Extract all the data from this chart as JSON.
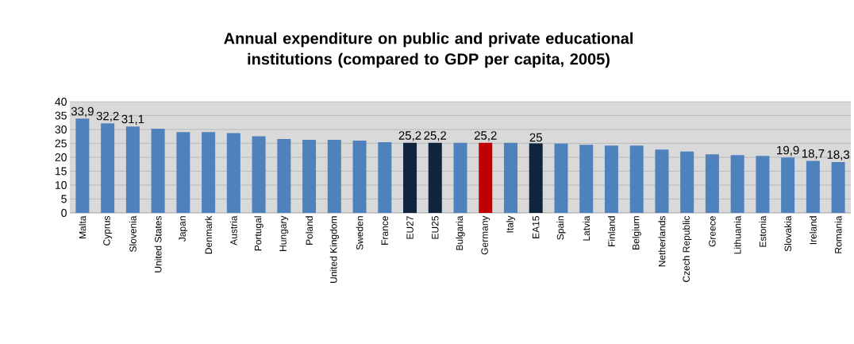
{
  "chart_data": {
    "type": "bar",
    "title": "Annual expenditure on public and private educational institutions   (compared to GDP per capita, 2005)",
    "categories": [
      "Malta",
      "Cyprus",
      "Slovenia",
      "United States",
      "Japan",
      "Denmark",
      "Austria",
      "Portugal",
      "Hungary",
      "Poland",
      "United Kingdom",
      "Sweden",
      "France",
      "EU27",
      "EU25",
      "Bulgaria",
      "Germany",
      "Italy",
      "EA15",
      "Spain",
      "Latvia",
      "Finland",
      "Belgium",
      "Netherlands",
      "Czech Republic",
      "Greece",
      "Lithuania",
      "Estonia",
      "Slovakia",
      "Ireland",
      "Romania"
    ],
    "values": [
      33.9,
      32.2,
      31.1,
      30.3,
      29.1,
      29.1,
      28.7,
      27.6,
      26.6,
      26.3,
      26.3,
      26.0,
      25.4,
      25.2,
      25.2,
      25.2,
      25.2,
      25.2,
      25,
      24.9,
      24.5,
      24.2,
      24.2,
      22.8,
      22.1,
      21.1,
      20.8,
      20.5,
      19.9,
      18.7,
      18.3
    ],
    "value_labels": [
      "33,9",
      "32,2",
      "31,1",
      null,
      null,
      null,
      null,
      null,
      null,
      null,
      null,
      null,
      null,
      "25,2",
      "25,2",
      null,
      "25,2",
      null,
      "25",
      null,
      null,
      null,
      null,
      null,
      null,
      null,
      null,
      null,
      "19,9",
      "18,7",
      "18,3"
    ],
    "colors": [
      "#4f81bd",
      "#4f81bd",
      "#4f81bd",
      "#4f81bd",
      "#4f81bd",
      "#4f81bd",
      "#4f81bd",
      "#4f81bd",
      "#4f81bd",
      "#4f81bd",
      "#4f81bd",
      "#4f81bd",
      "#4f81bd",
      "#10243e",
      "#10243e",
      "#4f81bd",
      "#c00000",
      "#4f81bd",
      "#10243e",
      "#4f81bd",
      "#4f81bd",
      "#4f81bd",
      "#4f81bd",
      "#4f81bd",
      "#4f81bd",
      "#4f81bd",
      "#4f81bd",
      "#4f81bd",
      "#4f81bd",
      "#4f81bd",
      "#4f81bd"
    ],
    "ylim": [
      0,
      40
    ],
    "yticks": [
      0,
      5,
      10,
      15,
      20,
      25,
      30,
      35,
      40
    ],
    "grid": "y"
  }
}
